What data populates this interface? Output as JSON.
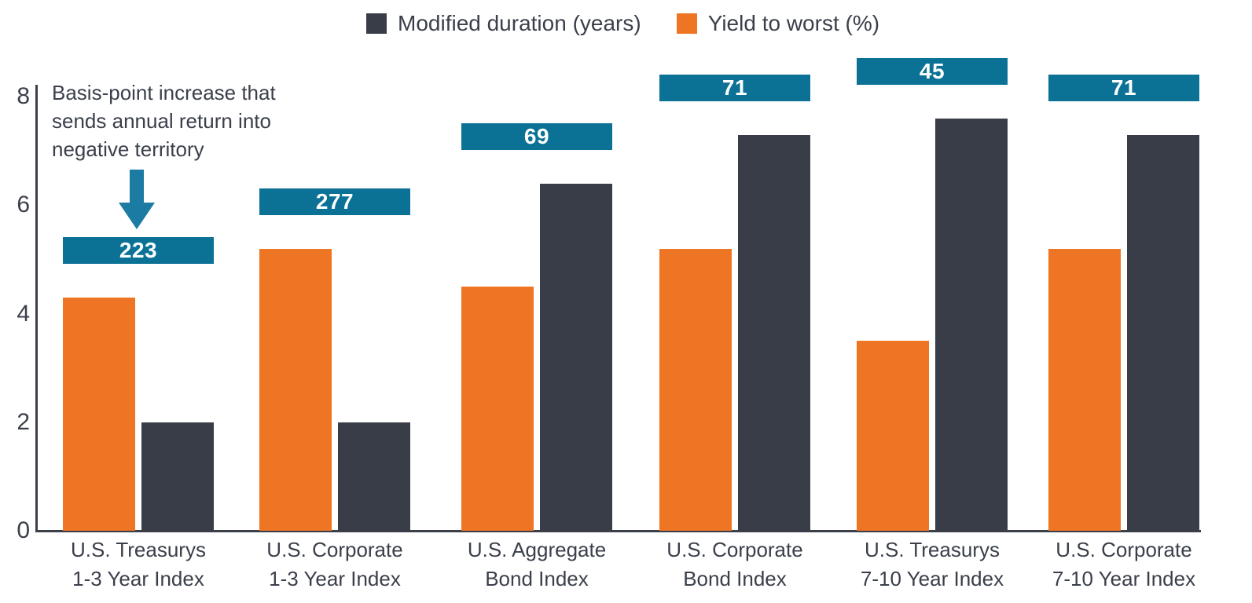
{
  "legend": {
    "items": [
      {
        "label": "Modified duration (years)",
        "color": "#393d48"
      },
      {
        "label": "Yield to worst (%)",
        "color": "#ed7523"
      }
    ]
  },
  "annotation": {
    "text": "Basis-point increase that\nsends annual return into\nnegative territory",
    "arrow_color": "#1b7ba3"
  },
  "colors": {
    "orange": "#ed7523",
    "dark_slate": "#393d48",
    "teal_badge": "#0b7296",
    "axis": "#3a3f4a",
    "badge_text": "#ffffff"
  },
  "chart_data": {
    "type": "bar",
    "categories": [
      "U.S. Treasurys\n1-3 Year Index",
      "U.S. Corporate\n1-3 Year Index",
      "U.S. Aggregate\nBond Index",
      "U.S. Corporate\nBond Index",
      "U.S. Treasurys\n7-10 Year Index",
      "U.S. Corporate\n7-10 Year Index"
    ],
    "series": [
      {
        "name": "Yield to worst (%)",
        "color": "#ed7523",
        "values": [
          4.3,
          5.2,
          4.5,
          5.2,
          3.5,
          5.2
        ]
      },
      {
        "name": "Modified duration (years)",
        "color": "#393d48",
        "values": [
          2.0,
          2.0,
          6.4,
          7.3,
          7.6,
          7.3
        ]
      }
    ],
    "bp_increase_labels": [
      "223",
      "277",
      "69",
      "71",
      "45",
      "71"
    ],
    "yticks": [
      8,
      6,
      4,
      2,
      0
    ],
    "ylim": [
      0,
      8
    ],
    "xlabel": "",
    "ylabel": "",
    "grid": false,
    "legend_position": "top-center",
    "annotation": "Basis-point increase that sends annual return into negative territory"
  }
}
